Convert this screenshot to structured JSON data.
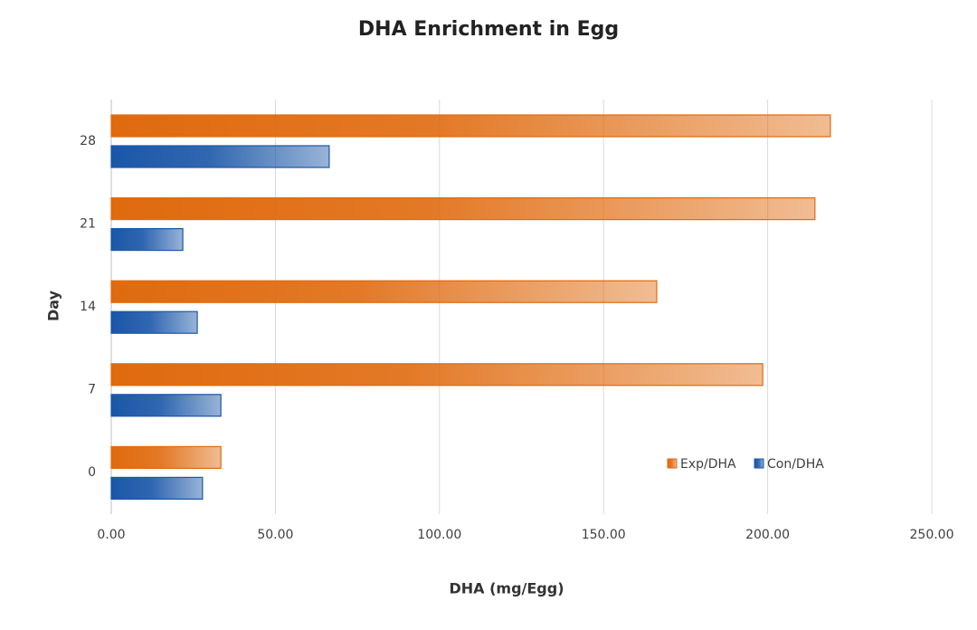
{
  "chart_data": {
    "type": "hbar",
    "title": "DHA Enrichment in Egg",
    "x_label": "DHA (mg/Egg)",
    "y_label": "Day",
    "categories": [
      "0",
      "7",
      "14",
      "21",
      "28"
    ],
    "series": [
      {
        "name": "Exp/DHA",
        "color": "#e06a0e",
        "values": [
          33.4,
          198.5,
          166.2,
          214.4,
          219.1
        ]
      },
      {
        "name": "Con/DHA",
        "color": "#1a56a8",
        "values": [
          27.8,
          33.4,
          26.2,
          21.8,
          66.4
        ]
      }
    ],
    "xlim": [
      0,
      250
    ],
    "xticks": [
      {
        "value": 0,
        "label": "0.00"
      },
      {
        "value": 50,
        "label": "50.00"
      },
      {
        "value": 100,
        "label": "100.00"
      },
      {
        "value": 150,
        "label": "150.00"
      },
      {
        "value": 200,
        "label": "200.00"
      },
      {
        "value": 250,
        "label": "250.00"
      }
    ],
    "grid": true,
    "legend": "lower-right"
  }
}
